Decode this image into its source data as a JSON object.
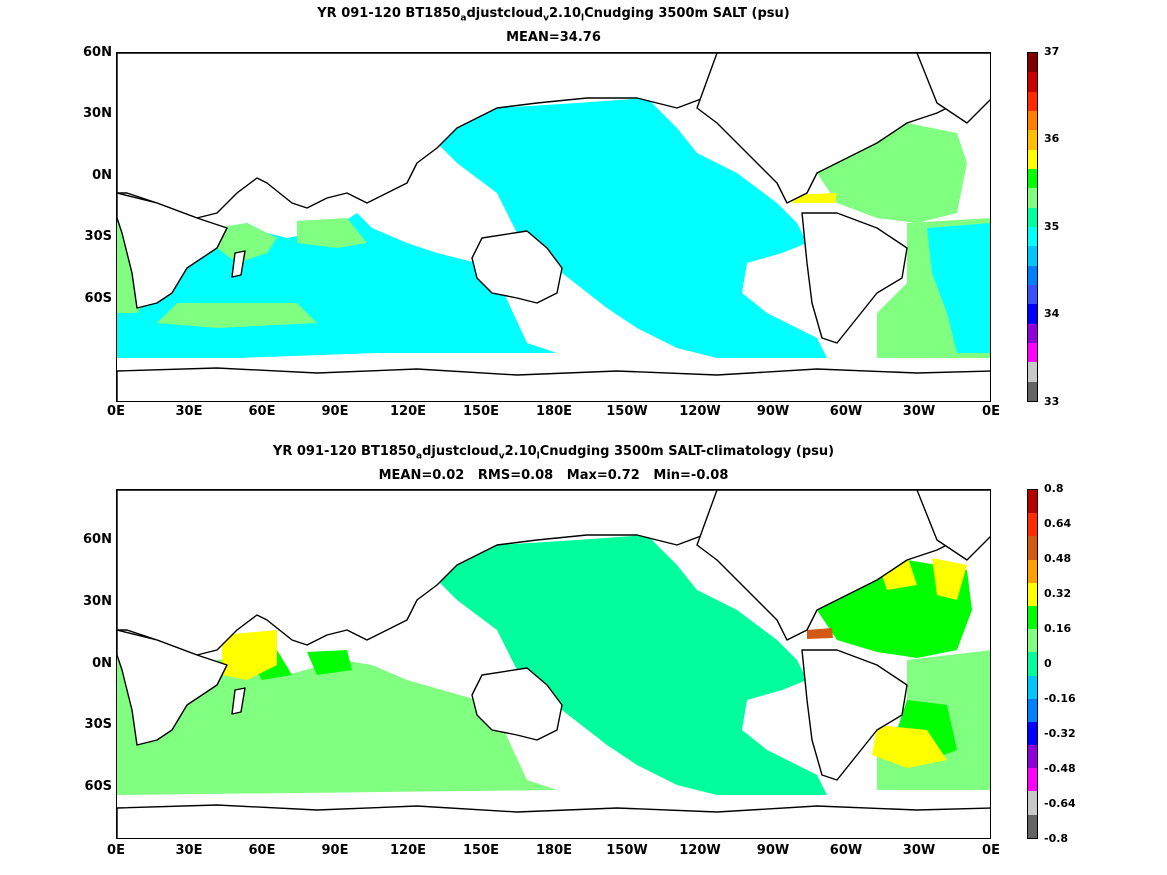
{
  "panels": [
    {
      "title_parts": [
        "YR 091-120 BT1850",
        "a",
        "djustcloud",
        "v",
        "2.10",
        "l",
        "Cnudging 3500m SALT (psu)"
      ],
      "stats": "MEAN=34.76",
      "colorbar": {
        "labels": [
          "37",
          "36",
          "35",
          "34",
          "33"
        ],
        "colors": [
          "#800000",
          "#c80000",
          "#ff2a00",
          "#ff7f00",
          "#ffbf00",
          "#ffff00",
          "#00ff00",
          "#80ff80",
          "#00ffa0",
          "#00ffff",
          "#00c8ff",
          "#0080ff",
          "#3a50ff",
          "#0000ff",
          "#9000d8",
          "#ff00ff",
          "#c8c8c8",
          "#646464"
        ]
      }
    },
    {
      "title_parts": [
        "YR 091-120 BT1850",
        "a",
        "djustcloud",
        "v",
        "2.10",
        "l",
        "Cnudging 3500m SALT-climatology (psu)"
      ],
      "stats": "MEAN=0.02   RMS=0.08   Max=0.72   Min=-0.08",
      "colorbar": {
        "labels": [
          "0.8",
          "0.64",
          "0.48",
          "0.32",
          "0.16",
          "0",
          "-0.16",
          "-0.32",
          "-0.48",
          "-0.64",
          "-0.8"
        ],
        "colors": [
          "#b40000",
          "#ff2a00",
          "#d25a14",
          "#ffa000",
          "#ffff00",
          "#00ff00",
          "#80ff80",
          "#00ff9c",
          "#00c8ff",
          "#0080ff",
          "#0000ff",
          "#9000d8",
          "#ff00ff",
          "#c8c8c8",
          "#646464"
        ]
      }
    }
  ],
  "axes": {
    "y_ticks": [
      "60N",
      "30N",
      "0N",
      "30S",
      "60S"
    ],
    "x_ticks": [
      "0E",
      "30E",
      "60E",
      "90E",
      "120E",
      "150E",
      "180E",
      "150W",
      "120W",
      "90W",
      "60W",
      "30W",
      "0E"
    ]
  },
  "colors": {
    "top_ocean": "#00ffff",
    "top_atlantic": "#80ff80",
    "bottom_ocean": "#00ff9c",
    "bottom_light": "#80ff80",
    "bottom_high": "#00ff00",
    "bottom_yellow": "#ffff00",
    "bottom_orange": "#d25a14"
  }
}
